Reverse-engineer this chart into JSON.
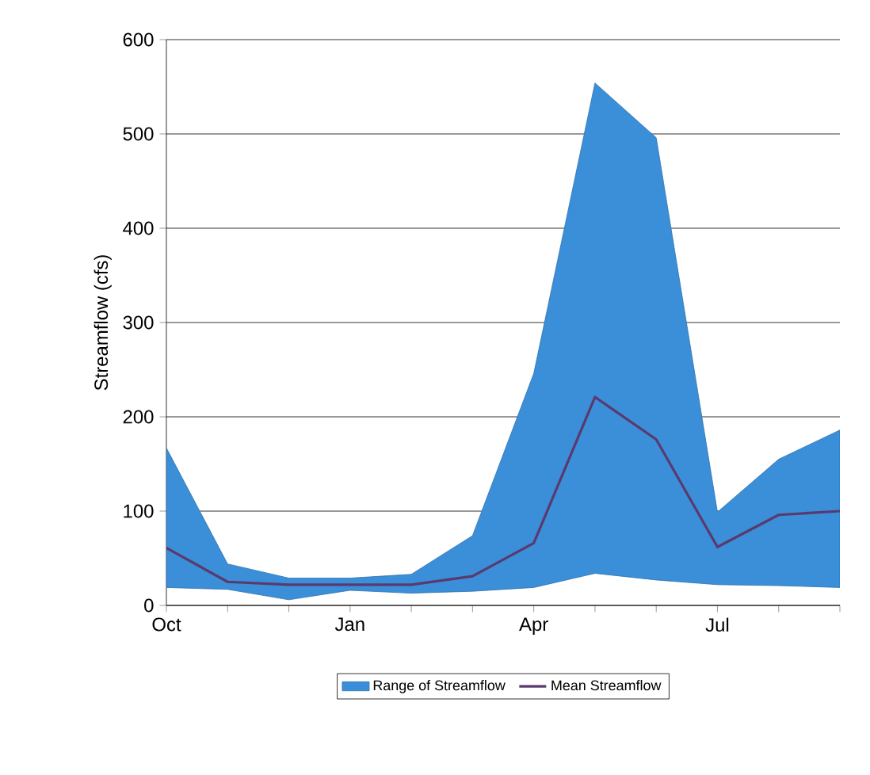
{
  "chart_data": {
    "type": "line",
    "ylabel": "Streamflow  (cfs)",
    "categories": [
      "Oct",
      null,
      null,
      "Jan",
      null,
      null,
      "Apr",
      null,
      null,
      "Jul",
      null,
      null
    ],
    "ylim": [
      0,
      600
    ],
    "yticks": [
      0,
      100,
      200,
      300,
      400,
      500,
      600
    ],
    "grid": "y",
    "legend": "bottom",
    "series": [
      {
        "name": "Range of Streamflow",
        "type": "area",
        "color": "#3b8ed8",
        "values": [
          null,
          null,
          null,
          null,
          null,
          null,
          null,
          null,
          null,
          null,
          null,
          null
        ],
        "lower": [
          19,
          17,
          6,
          16,
          13,
          15,
          19,
          34,
          27,
          22,
          21,
          19
        ],
        "upper": [
          167,
          44,
          29,
          29,
          33,
          74,
          246,
          554,
          496,
          99,
          155,
          186
        ]
      },
      {
        "name": "Mean Streamflow",
        "color": "#5a3a6e",
        "values": [
          61,
          25,
          22,
          22,
          22,
          31,
          66,
          221,
          176,
          62,
          96,
          100
        ]
      }
    ]
  }
}
